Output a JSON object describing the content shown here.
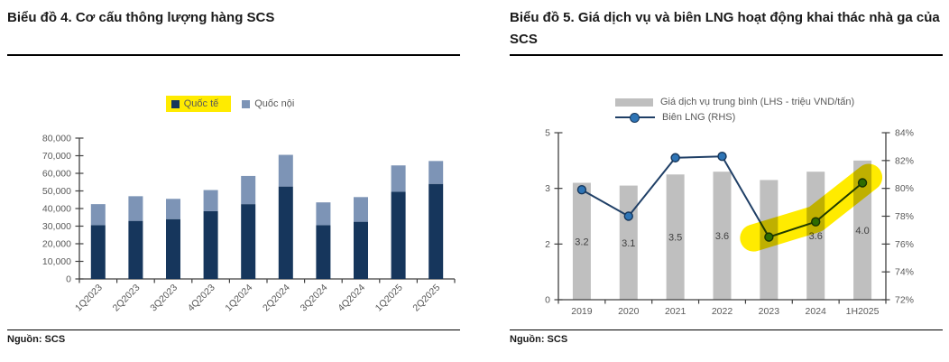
{
  "panels": {
    "left": {
      "title": "Biểu đồ 4. Cơ cấu thông lượng hàng SCS",
      "source": "Nguồn: SCS"
    },
    "right": {
      "title": "Biểu đồ 5. Giá dịch vụ và biên LNG hoạt động khai thác nhà ga của SCS",
      "source": "Nguồn: SCS"
    }
  },
  "colors": {
    "navy": "#16365C",
    "steel": "#7D94B6",
    "gray_bar": "#BFBFBF",
    "line": "#1F3F66",
    "marker": "#2E74B5",
    "highlight_yellow": "#FFEB00",
    "axis": "#404040",
    "tick_text": "#595959",
    "bar_label": "#404040"
  },
  "chart_data": [
    {
      "id": "scs-throughput",
      "type": "bar",
      "stacked": true,
      "title": "Biểu đồ 4. Cơ cấu thông lượng hàng SCS",
      "categories": [
        "1Q2023",
        "2Q2023",
        "3Q2023",
        "4Q2023",
        "1Q2024",
        "2Q2024",
        "3Q2024",
        "4Q2024",
        "1Q2025",
        "2Q2025"
      ],
      "series": [
        {
          "name": "Quốc tế",
          "color": "#16365C",
          "legend_highlighted": true,
          "values": [
            30500,
            33000,
            34000,
            38500,
            42500,
            52500,
            30500,
            32500,
            49500,
            54000
          ]
        },
        {
          "name": "Quốc nội",
          "color": "#7D94B6",
          "legend_highlighted": false,
          "values": [
            12000,
            14000,
            11500,
            12000,
            16000,
            18000,
            13000,
            14000,
            15000,
            13000
          ]
        }
      ],
      "xlabel": "",
      "ylabel": "",
      "ylim": [
        0,
        80000
      ],
      "ytick_step": 10000,
      "ytick_labels": [
        "0",
        "10,000",
        "20,000",
        "30,000",
        "40,000",
        "50,000",
        "60,000",
        "70,000",
        "80,000"
      ],
      "grid": false,
      "legend_position": "top",
      "x_label_rotation": -45
    },
    {
      "id": "scs-price-margin",
      "type": "combo-bar-line",
      "title": "Biểu đồ 5. Giá dịch vụ và biên LNG hoạt động khai thác nhà ga của SCS",
      "categories": [
        "2019",
        "2020",
        "2021",
        "2022",
        "2023",
        "2024",
        "1H2025"
      ],
      "bar_series": {
        "name": "Giá dịch vụ trung bình (LHS - triệu VND/tấn)",
        "color": "#BFBFBF",
        "axis": "left",
        "values": [
          3.2,
          3.1,
          3.5,
          3.6,
          3.3,
          3.6,
          4.0
        ],
        "labels": [
          "3.2",
          "3.1",
          "3.5",
          "3.6",
          "",
          "3.6",
          "4.0"
        ]
      },
      "line_series": {
        "name": "Biên LNG (RHS)",
        "color": "#1F3F66",
        "marker_color": "#2E74B5",
        "axis": "right",
        "values_pct": [
          79.9,
          78.0,
          82.2,
          82.3,
          76.5,
          77.6,
          80.4
        ]
      },
      "left_axis": {
        "tick_labels_top_to_bottom": [
          "5",
          "3",
          "2",
          "0"
        ],
        "scale_stops": [
          0,
          2,
          3,
          5
        ]
      },
      "right_axis": {
        "min": 72,
        "max": 84,
        "step": 2,
        "suffix": "%",
        "tick_labels_top_to_bottom": [
          "84%",
          "82%",
          "80%",
          "78%",
          "76%",
          "74%",
          "72%"
        ]
      },
      "highlight_band": {
        "color": "#FFEB00",
        "from_category": "2023",
        "to_category": "1H2025"
      },
      "grid": false,
      "legend_position": "top"
    }
  ]
}
